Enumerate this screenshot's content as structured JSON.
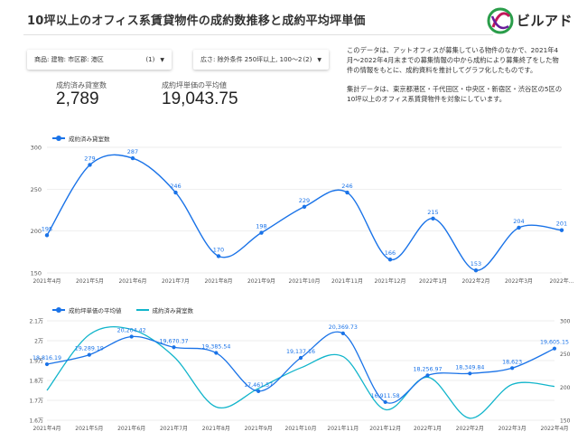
{
  "header": {
    "title": "10坪以上のオフィス系賃貸物件の成約数推移と成約平均坪単価"
  },
  "logo": {
    "text": "ビルアド"
  },
  "filters": [
    {
      "label": "商品: 建物: 市区郡: 港区",
      "count": "(1)",
      "caret": "▼"
    },
    {
      "label": "広さ: 除外条件 250坪以上, 100～2...",
      "count": "(2)",
      "caret": "▼"
    }
  ],
  "kpis": [
    {
      "label": "成約済み貸室数",
      "value": "2,789"
    },
    {
      "label": "成約坪単価の平均値",
      "value": "19,043.75"
    }
  ],
  "description": [
    "このデータは、アットオフィスが募集している物件のなかで、2021年4月～2022年4月末までの募集情報の中から成約により募集終了をした物件の情報をもとに、成約資料を推計してグラフ化したものです。",
    "集計データは、東京都港区・千代田区・中央区・新宿区・渋谷区の5区の10坪以上のオフィス系賃貸物件を対象にしています。"
  ],
  "colors": {
    "primary": "#1a73e8",
    "secondary": "#12b5cb",
    "grid": "#e6e6e6"
  },
  "chart_data": [
    {
      "type": "line",
      "categories": [
        "2021年4月",
        "2021年5月",
        "2021年6月",
        "2021年7月",
        "2021年8月",
        "2021年9月",
        "2021年10月",
        "2021年11月",
        "2021年12月",
        "2022年1月",
        "2022年2月",
        "2022年3月",
        "2022年..."
      ],
      "series": [
        {
          "name": "成約済み貸室数",
          "values": [
            195,
            279,
            287,
            246,
            170,
            198,
            229,
            246,
            166,
            215,
            153,
            204,
            201
          ],
          "labels": [
            "195",
            "279",
            "287",
            "246",
            "170",
            "198",
            "229",
            "246",
            "166",
            "215",
            "153",
            "204",
            "201"
          ]
        }
      ],
      "yticks": [
        "300",
        "250",
        "200",
        "150"
      ],
      "ylim": [
        150,
        300
      ]
    },
    {
      "type": "line",
      "categories": [
        "2021年4月",
        "2021年5月",
        "2021年6月",
        "2021年7月",
        "2021年8月",
        "2021年9月",
        "2021年10月",
        "2021年11月",
        "2021年12月",
        "2022年1月",
        "2022年2月",
        "2022年3月",
        "2022年4月"
      ],
      "series": [
        {
          "name": "成約坪単価の平均値",
          "axis": "left",
          "values": [
            18816.19,
            19289.19,
            20204.42,
            19670.37,
            19385.54,
            17461.57,
            19137.16,
            20369.73,
            16911.58,
            18256.97,
            18349.84,
            18623,
            19605.15
          ],
          "labels": [
            "18,816.19",
            "19,289.19",
            "20,204.42",
            "19,670.37",
            "19,385.54",
            "17,461.57",
            "19,137.16",
            "20,369.73",
            "16,911.58",
            "18,256.97",
            "18,349.84",
            "18,623",
            "19,605.15"
          ]
        },
        {
          "name": "成約済み貸室数",
          "axis": "right",
          "values": [
            195,
            279,
            287,
            246,
            170,
            198,
            229,
            246,
            166,
            215,
            153,
            204,
            201
          ]
        }
      ],
      "left_ticks": [
        "2.1万",
        "2万",
        "1.9万",
        "1.8万",
        "1.7万",
        "1.6万"
      ],
      "left_ylim": [
        16000,
        21000
      ],
      "right_ticks": [
        "300",
        "250",
        "200",
        "150"
      ],
      "right_ylim": [
        150,
        300
      ]
    }
  ]
}
